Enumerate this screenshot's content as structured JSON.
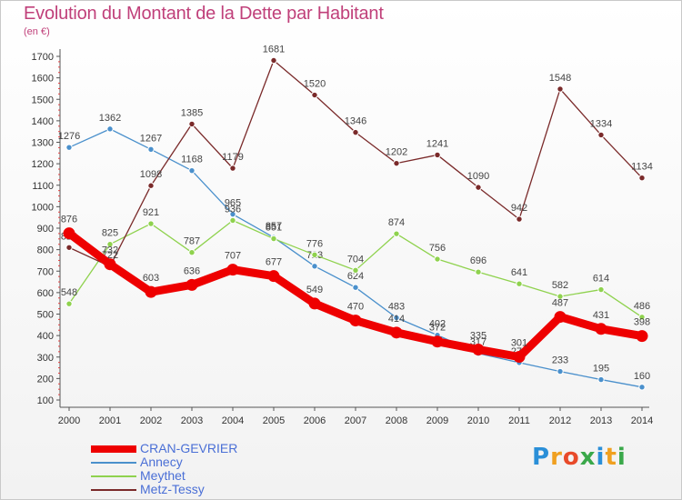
{
  "title": "Evolution du Montant de la Dette par Habitant",
  "subtitle": "(en €)",
  "logo": {
    "letters": [
      "P",
      "r",
      "o",
      "x",
      "i",
      "t",
      "i"
    ],
    "colors": [
      "#2a8fd8",
      "#f0a020",
      "#e84a2a",
      "#3aa84a",
      "#2a8fd8",
      "#f0a020",
      "#3aa84a"
    ]
  },
  "chart_data": {
    "type": "line",
    "title": "Evolution du Montant de la Dette par Habitant",
    "ylabel": "(en €)",
    "x": [
      "2000",
      "2001",
      "2002",
      "2003",
      "2004",
      "2005",
      "2006",
      "2007",
      "2008",
      "2009",
      "2010",
      "2011",
      "2012",
      "2013",
      "2014"
    ],
    "ylim": [
      100,
      1700
    ],
    "yticks": [
      100,
      200,
      300,
      400,
      500,
      600,
      700,
      800,
      900,
      1000,
      1100,
      1200,
      1300,
      1400,
      1500,
      1600,
      1700
    ],
    "grid": false,
    "legend_position": "bottom-left",
    "series": [
      {
        "name": "Annecy",
        "color": "#4a90cc",
        "values": [
          1276,
          1362,
          1267,
          1168,
          965,
          857,
          723,
          624,
          483,
          402,
          317,
          274,
          233,
          195,
          160
        ]
      },
      {
        "name": "Meythet",
        "color": "#8fd24e",
        "values": [
          548,
          825,
          921,
          787,
          936,
          851,
          776,
          704,
          874,
          756,
          696,
          641,
          582,
          614,
          486
        ]
      },
      {
        "name": "Metz-Tessy",
        "color": "#7a2a2a",
        "values": [
          810,
          722,
          1098,
          1385,
          1179,
          1681,
          1520,
          1346,
          1202,
          1241,
          1090,
          942,
          1548,
          1334,
          1134
        ]
      },
      {
        "name": "CRAN-GEVRIER",
        "color": "#ee0000",
        "values": [
          876,
          732,
          603,
          636,
          707,
          677,
          549,
          470,
          414,
          372,
          335,
          301,
          487,
          431,
          398
        ]
      }
    ]
  }
}
